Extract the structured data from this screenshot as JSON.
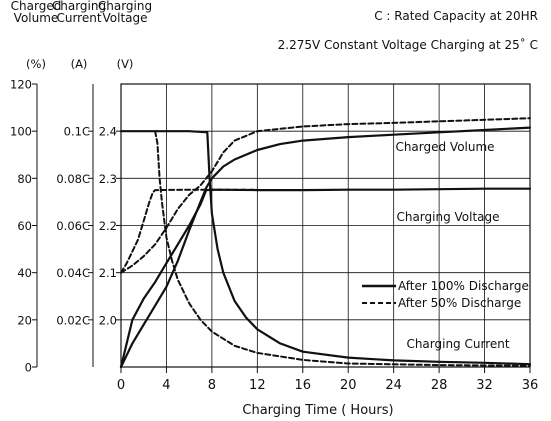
{
  "chart_data": {
    "type": "line",
    "notes": [
      "C : Rated Capacity at 20HR",
      "2.275V Constant  Voltage Charging at 25˚ C"
    ],
    "xlabel": "Charging Time ( Hours)",
    "xlim": [
      0,
      36
    ],
    "x_ticks": [
      0,
      4,
      8,
      12,
      16,
      20,
      24,
      28,
      32,
      36
    ],
    "grid": true,
    "axes": [
      {
        "key": "volume",
        "label_lines": [
          "Charged",
          "Volume"
        ],
        "unit": "(%)",
        "range": [
          0,
          120
        ],
        "ticks": [
          {
            "v": 0,
            "label": "0"
          },
          {
            "v": 20,
            "label": "20"
          },
          {
            "v": 40,
            "label": "40"
          },
          {
            "v": 60,
            "label": "60"
          },
          {
            "v": 80,
            "label": "80"
          },
          {
            "v": 100,
            "label": "100"
          },
          {
            "v": 120,
            "label": "120"
          }
        ]
      },
      {
        "key": "current",
        "label_lines": [
          "Charging",
          "Current"
        ],
        "unit": "(A)",
        "range": [
          0,
          0.12
        ],
        "ticks": [
          {
            "v": 0.02,
            "label": "0.02C"
          },
          {
            "v": 0.04,
            "label": "0.04C"
          },
          {
            "v": 0.06,
            "label": "0.06C"
          },
          {
            "v": 0.08,
            "label": "0.08C"
          },
          {
            "v": 0.1,
            "label": "0.1C"
          }
        ]
      },
      {
        "key": "voltage",
        "label_lines": [
          "Charging",
          "Voltage"
        ],
        "unit": "(V)",
        "range": [
          1.9,
          2.5
        ],
        "ticks": [
          {
            "v": 2.0,
            "label": "2.0"
          },
          {
            "v": 2.1,
            "label": "2.1"
          },
          {
            "v": 2.2,
            "label": "2.2"
          },
          {
            "v": 2.3,
            "label": "2.3"
          },
          {
            "v": 2.4,
            "label": "2.4"
          }
        ]
      }
    ],
    "curve_labels": {
      "volume": "Charged Volume",
      "voltage": "Charging Voltage",
      "current": "Charging Current"
    },
    "legend": {
      "position": "lower-right",
      "entries": [
        {
          "name": "After 100% Discharge",
          "style": "solid"
        },
        {
          "name": "After 50% Discharge",
          "style": "dashed"
        }
      ]
    },
    "series": [
      {
        "legend": "After 100% Discharge",
        "quantity": "Charged Volume",
        "axis": "volume",
        "style": "solid",
        "points": [
          [
            0,
            0
          ],
          [
            1,
            10
          ],
          [
            2,
            18
          ],
          [
            3,
            26
          ],
          [
            4,
            34
          ],
          [
            5,
            45
          ],
          [
            6,
            58
          ],
          [
            7,
            70
          ],
          [
            7.5,
            76
          ],
          [
            8,
            80
          ],
          [
            9,
            85
          ],
          [
            10,
            88
          ],
          [
            12,
            92
          ],
          [
            14,
            94.5
          ],
          [
            16,
            96
          ],
          [
            20,
            97.5
          ],
          [
            24,
            98.5
          ],
          [
            28,
            99.5
          ],
          [
            32,
            100.5
          ],
          [
            36,
            101.5
          ]
        ]
      },
      {
        "legend": "After 50% Discharge",
        "quantity": "Charged Volume",
        "axis": "volume",
        "style": "dashed",
        "points": [
          [
            0,
            40
          ],
          [
            1,
            43
          ],
          [
            2,
            47
          ],
          [
            3,
            52
          ],
          [
            4,
            59
          ],
          [
            5,
            67
          ],
          [
            6,
            73
          ],
          [
            7,
            77
          ],
          [
            8,
            83
          ],
          [
            9,
            91
          ],
          [
            10,
            96
          ],
          [
            12,
            100
          ],
          [
            16,
            102
          ],
          [
            20,
            103
          ],
          [
            24,
            103.5
          ],
          [
            28,
            104.2
          ],
          [
            32,
            104.8
          ],
          [
            36,
            105.5
          ]
        ]
      },
      {
        "legend": "After 100% Discharge",
        "quantity": "Charging Voltage",
        "axis": "voltage",
        "style": "solid",
        "points": [
          [
            0,
            1.9
          ],
          [
            0.5,
            1.95
          ],
          [
            1,
            2.0
          ],
          [
            2,
            2.045
          ],
          [
            3,
            2.08
          ],
          [
            4,
            2.12
          ],
          [
            5,
            2.16
          ],
          [
            6,
            2.2
          ],
          [
            7,
            2.245
          ],
          [
            7.5,
            2.275
          ],
          [
            8,
            2.276
          ],
          [
            12,
            2.275
          ],
          [
            16,
            2.275
          ],
          [
            20,
            2.276
          ],
          [
            24,
            2.276
          ],
          [
            28,
            2.277
          ],
          [
            32,
            2.278
          ],
          [
            36,
            2.278
          ]
        ]
      },
      {
        "legend": "After 50% Discharge",
        "quantity": "Charging Voltage",
        "axis": "voltage",
        "style": "dashed",
        "points": [
          [
            0,
            2.1
          ],
          [
            0.5,
            2.12
          ],
          [
            1,
            2.145
          ],
          [
            1.5,
            2.17
          ],
          [
            2,
            2.21
          ],
          [
            2.5,
            2.25
          ],
          [
            2.8,
            2.27
          ],
          [
            3,
            2.275
          ],
          [
            6,
            2.276
          ],
          [
            8,
            2.276
          ],
          [
            12,
            2.276
          ]
        ]
      },
      {
        "legend": "After 100% Discharge",
        "quantity": "Charging Current",
        "axis": "current",
        "style": "solid",
        "points": [
          [
            0,
            0.1
          ],
          [
            6,
            0.1
          ],
          [
            7.6,
            0.0995
          ],
          [
            7.8,
            0.08
          ],
          [
            8,
            0.065
          ],
          [
            8.5,
            0.05
          ],
          [
            9,
            0.04
          ],
          [
            10,
            0.028
          ],
          [
            11,
            0.021
          ],
          [
            12,
            0.016
          ],
          [
            14,
            0.01
          ],
          [
            16,
            0.0065
          ],
          [
            20,
            0.004
          ],
          [
            24,
            0.0028
          ],
          [
            28,
            0.0022
          ],
          [
            32,
            0.0018
          ],
          [
            36,
            0.0012
          ]
        ]
      },
      {
        "legend": "After 50% Discharge",
        "quantity": "Charging Current",
        "axis": "current",
        "style": "dashed",
        "points": [
          [
            3,
            0.1
          ],
          [
            3.2,
            0.095
          ],
          [
            3.4,
            0.08
          ],
          [
            3.6,
            0.07
          ],
          [
            4,
            0.055
          ],
          [
            4.5,
            0.045
          ],
          [
            5,
            0.037
          ],
          [
            6,
            0.027
          ],
          [
            7,
            0.02
          ],
          [
            8,
            0.015
          ],
          [
            10,
            0.009
          ],
          [
            12,
            0.006
          ],
          [
            16,
            0.003
          ],
          [
            20,
            0.0015
          ],
          [
            28,
            0.0008
          ],
          [
            36,
            0.0005
          ]
        ]
      }
    ]
  }
}
